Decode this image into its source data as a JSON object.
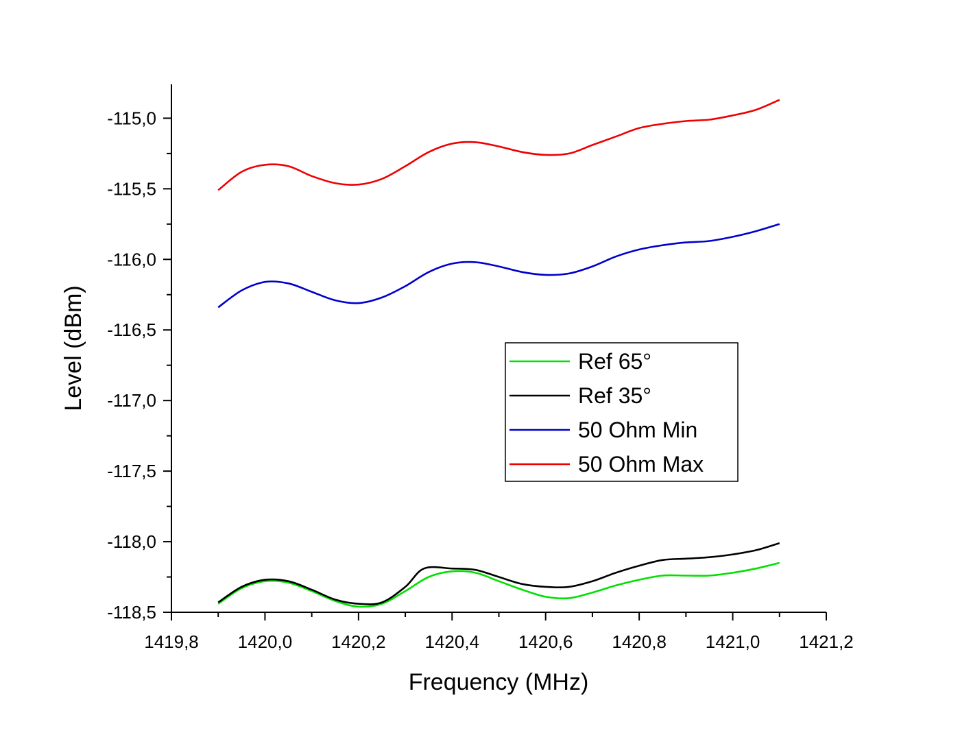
{
  "chart_data": {
    "type": "line",
    "title": "",
    "xlabel": "Frequency (MHz)",
    "ylabel": "Level (dBm)",
    "xlim": [
      1419.8,
      1421.2
    ],
    "ylim": [
      -118.5,
      -114.76
    ],
    "x_ticks": [
      1419.8,
      1420.0,
      1420.2,
      1420.4,
      1420.6,
      1420.8,
      1421.0,
      1421.2
    ],
    "x_tick_labels": [
      "1419,8",
      "1420,0",
      "1420,2",
      "1420,4",
      "1420,6",
      "1420,8",
      "1421,0",
      "1421,2"
    ],
    "y_ticks": [
      -118.5,
      -118.0,
      -117.5,
      -117.0,
      -116.5,
      -116.0,
      -115.5,
      -115.0
    ],
    "y_tick_labels": [
      "-118,5",
      "-118,0",
      "-117,5",
      "-117,0",
      "-116,5",
      "-116,0",
      "-115,5",
      "-115,0"
    ],
    "grid": false,
    "legend_position": "center-right",
    "series": [
      {
        "name": "Ref 65°",
        "color": "#00e000",
        "x": [
          1419.9,
          1419.95,
          1420.0,
          1420.05,
          1420.1,
          1420.15,
          1420.2,
          1420.25,
          1420.3,
          1420.35,
          1420.4,
          1420.45,
          1420.5,
          1420.55,
          1420.6,
          1420.65,
          1420.7,
          1420.75,
          1420.8,
          1420.85,
          1420.9,
          1420.95,
          1421.0,
          1421.05,
          1421.1
        ],
        "y": [
          -118.44,
          -118.33,
          -118.28,
          -118.29,
          -118.35,
          -118.42,
          -118.46,
          -118.44,
          -118.35,
          -118.25,
          -118.21,
          -118.22,
          -118.28,
          -118.34,
          -118.39,
          -118.4,
          -118.36,
          -118.31,
          -118.27,
          -118.24,
          -118.24,
          -118.24,
          -118.22,
          -118.19,
          -118.15
        ]
      },
      {
        "name": "Ref 35°",
        "color": "#000000",
        "x": [
          1419.9,
          1419.95,
          1420.0,
          1420.05,
          1420.1,
          1420.15,
          1420.2,
          1420.25,
          1420.3,
          1420.34,
          1420.4,
          1420.45,
          1420.5,
          1420.55,
          1420.6,
          1420.65,
          1420.7,
          1420.75,
          1420.8,
          1420.85,
          1420.9,
          1420.95,
          1421.0,
          1421.05,
          1421.1
        ],
        "y": [
          -118.43,
          -118.32,
          -118.27,
          -118.28,
          -118.34,
          -118.41,
          -118.44,
          -118.43,
          -118.32,
          -118.19,
          -118.19,
          -118.2,
          -118.25,
          -118.3,
          -118.32,
          -118.32,
          -118.28,
          -118.22,
          -118.17,
          -118.13,
          -118.12,
          -118.11,
          -118.09,
          -118.06,
          -118.01
        ]
      },
      {
        "name": "50 Ohm Min",
        "color": "#0000cc",
        "x": [
          1419.9,
          1419.95,
          1420.0,
          1420.05,
          1420.1,
          1420.15,
          1420.2,
          1420.25,
          1420.3,
          1420.35,
          1420.4,
          1420.45,
          1420.5,
          1420.55,
          1420.6,
          1420.65,
          1420.7,
          1420.75,
          1420.8,
          1420.85,
          1420.9,
          1420.95,
          1421.0,
          1421.05,
          1421.1
        ],
        "y": [
          -116.34,
          -116.22,
          -116.16,
          -116.17,
          -116.23,
          -116.29,
          -116.31,
          -116.27,
          -116.19,
          -116.09,
          -116.03,
          -116.02,
          -116.05,
          -116.09,
          -116.11,
          -116.1,
          -116.05,
          -115.98,
          -115.93,
          -115.9,
          -115.88,
          -115.87,
          -115.84,
          -115.8,
          -115.75
        ]
      },
      {
        "name": "50 Ohm Max",
        "color": "#ee0000",
        "x": [
          1419.9,
          1419.95,
          1420.0,
          1420.05,
          1420.1,
          1420.15,
          1420.2,
          1420.25,
          1420.3,
          1420.35,
          1420.4,
          1420.45,
          1420.5,
          1420.55,
          1420.6,
          1420.65,
          1420.7,
          1420.75,
          1420.8,
          1420.85,
          1420.9,
          1420.95,
          1421.0,
          1421.05,
          1421.1
        ],
        "y": [
          -115.51,
          -115.38,
          -115.33,
          -115.34,
          -115.41,
          -115.46,
          -115.47,
          -115.43,
          -115.34,
          -115.24,
          -115.18,
          -115.17,
          -115.2,
          -115.24,
          -115.26,
          -115.25,
          -115.19,
          -115.13,
          -115.07,
          -115.04,
          -115.02,
          -115.01,
          -114.98,
          -114.94,
          -114.87
        ]
      }
    ]
  }
}
